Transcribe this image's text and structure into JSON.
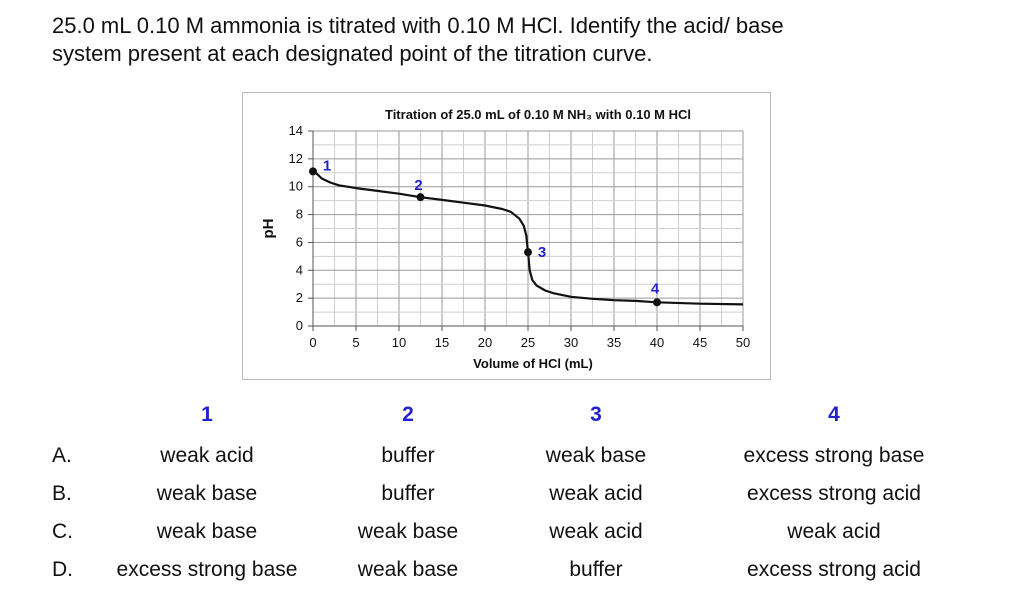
{
  "question": {
    "line1": "25.0 mL 0.10 M ammonia is titrated with 0.10 M HCl. Identify the acid/ base",
    "line2": "system present at each designated point of the titration curve."
  },
  "chart_data": {
    "type": "line",
    "title": "Titration of 25.0 mL of 0.10 M NH₃ with 0.10 M HCl",
    "xlabel": "Volume of HCl (mL)",
    "ylabel": "pH",
    "xlim": [
      0,
      50
    ],
    "ylim": [
      0,
      14
    ],
    "xticks": [
      0,
      5,
      10,
      15,
      20,
      25,
      30,
      35,
      40,
      45,
      50
    ],
    "yticks": [
      0,
      2,
      4,
      6,
      8,
      10,
      12,
      14
    ],
    "grid": true,
    "line_color": "#111111",
    "label_color": "#2222cc",
    "series": [
      {
        "x": [
          0,
          0.5,
          1,
          2,
          3,
          5,
          7.5,
          10,
          12.5,
          15,
          17.5,
          20,
          22,
          23,
          24,
          24.5,
          24.8,
          25,
          25.2,
          25.5,
          26,
          27,
          28,
          30,
          32.5,
          35,
          37.5,
          40,
          45,
          50
        ],
        "y": [
          11.1,
          10.9,
          10.6,
          10.3,
          10.1,
          9.9,
          9.7,
          9.5,
          9.25,
          9.05,
          8.85,
          8.65,
          8.4,
          8.2,
          7.7,
          7.2,
          6.5,
          5.3,
          4.0,
          3.3,
          2.9,
          2.55,
          2.35,
          2.1,
          1.95,
          1.85,
          1.8,
          1.7,
          1.6,
          1.55
        ]
      }
    ],
    "points": [
      {
        "label": "1",
        "x": 0,
        "y": 11.1
      },
      {
        "label": "2",
        "x": 12.5,
        "y": 9.25
      },
      {
        "label": "3",
        "x": 25,
        "y": 5.3
      },
      {
        "label": "4",
        "x": 40,
        "y": 1.7
      }
    ]
  },
  "answers": {
    "headers": [
      "1",
      "2",
      "3",
      "4"
    ],
    "rows": [
      {
        "letter": "A.",
        "cells": [
          "weak acid",
          "buffer",
          "weak base",
          "excess strong base"
        ]
      },
      {
        "letter": "B.",
        "cells": [
          "weak base",
          "buffer",
          "weak acid",
          "excess strong acid"
        ]
      },
      {
        "letter": "C.",
        "cells": [
          "weak base",
          "weak base",
          "weak acid",
          "weak acid"
        ]
      },
      {
        "letter": "D.",
        "cells": [
          "excess strong base",
          "weak base",
          "buffer",
          "excess strong acid"
        ]
      }
    ]
  }
}
